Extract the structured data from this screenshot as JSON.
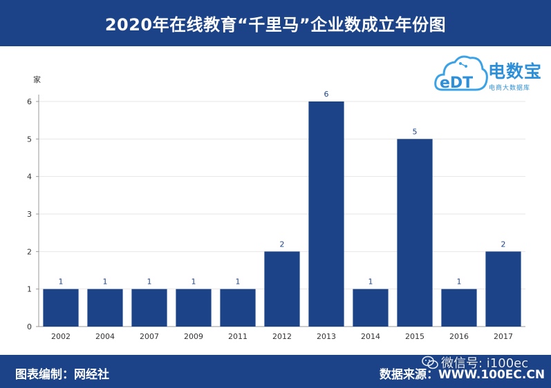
{
  "header": {
    "title": "2020年在线教育“千里马”企业数成立年份图"
  },
  "logo": {
    "name": "电数宝",
    "subtitle": "电商大数据库",
    "mark": "eDT"
  },
  "footer": {
    "left": "图表编制：网经社",
    "right": "数据来源：WWW.100EC.CN",
    "watermark": "微信号: i100ec"
  },
  "colors": {
    "bar": "#1c4287",
    "header": "#1c4287"
  },
  "chart_data": {
    "type": "bar",
    "title": "2020年在线教育“千里马”企业数成立年份图",
    "xlabel": "",
    "ylabel": "家",
    "categories": [
      "2002",
      "2004",
      "2007",
      "2009",
      "2011",
      "2012",
      "2013",
      "2014",
      "2015",
      "2016",
      "2017"
    ],
    "values": [
      1,
      1,
      1,
      1,
      1,
      2,
      6,
      1,
      5,
      1,
      2
    ],
    "yticks": [
      "0",
      "1",
      "2",
      "3",
      "4",
      "5",
      "6"
    ],
    "ylim": [
      0,
      6
    ],
    "grid": true,
    "data_labels": true
  }
}
